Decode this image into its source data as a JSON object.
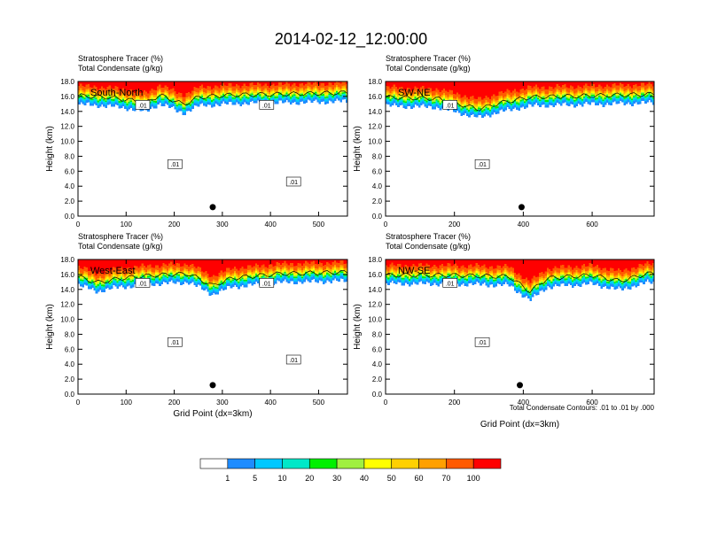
{
  "figure": {
    "title": "2014-02-12_12:00:00",
    "contour_info": "Total Condensate Contours: .01 to .01 by .000"
  },
  "colorbar": {
    "colors": [
      "#ffffff",
      "#1e8cff",
      "#00c8ff",
      "#00e8c8",
      "#00f000",
      "#a0f040",
      "#ffff00",
      "#ffd000",
      "#ffa000",
      "#ff5a00",
      "#ff0000"
    ],
    "tick_labels": [
      "1",
      "5",
      "10",
      "20",
      "30",
      "40",
      "50",
      "60",
      "70",
      "100"
    ]
  },
  "chart_data": [
    {
      "type": "heatmap",
      "label": "South-North",
      "subtitle_1": "Stratosphere Tracer   (%)",
      "subtitle_2": "Total Condensate   (g/kg)",
      "ylabel": "Height (km)",
      "xlabel": "",
      "xlim": [
        0,
        560
      ],
      "ylim": [
        0,
        18
      ],
      "xticks": [
        0,
        100,
        200,
        300,
        400,
        500
      ],
      "yticks": [
        "0.0",
        "2.0",
        "4.0",
        "6.0",
        "8.0",
        "10.0",
        "12.0",
        "14.0",
        "16.0",
        "18.0"
      ],
      "tropopause_km": [
        [
          0,
          15.2
        ],
        [
          60,
          15.0
        ],
        [
          110,
          14.6
        ],
        [
          140,
          14.2
        ],
        [
          170,
          15.3
        ],
        [
          220,
          14.0
        ],
        [
          250,
          15.0
        ],
        [
          320,
          15.3
        ],
        [
          420,
          15.4
        ],
        [
          560,
          15.6
        ]
      ],
      "contour_labels": [
        ".01",
        ".01",
        ".01",
        ".01"
      ],
      "marker": {
        "x": 280,
        "y": 1.2
      }
    },
    {
      "type": "heatmap",
      "label": "SW-NE",
      "subtitle_1": "Stratosphere Tracer   (%)",
      "subtitle_2": "Total Condensate   (g/kg)",
      "ylabel": "Height (km)",
      "xlabel": "",
      "xlim": [
        0,
        780
      ],
      "ylim": [
        0,
        18
      ],
      "xticks": [
        0,
        200,
        400,
        600
      ],
      "yticks": [
        "0.0",
        "2.0",
        "4.0",
        "6.0",
        "8.0",
        "10.0",
        "12.0",
        "14.0",
        "16.0",
        "18.0"
      ],
      "tropopause_km": [
        [
          0,
          15.0
        ],
        [
          150,
          14.8
        ],
        [
          220,
          14.0
        ],
        [
          270,
          13.4
        ],
        [
          330,
          14.2
        ],
        [
          420,
          15.0
        ],
        [
          600,
          15.2
        ],
        [
          780,
          15.4
        ]
      ],
      "contour_labels": [
        ".01",
        ".01"
      ],
      "marker": {
        "x": 395,
        "y": 1.2
      }
    },
    {
      "type": "heatmap",
      "label": "West-East",
      "subtitle_1": "Stratosphere Tracer   (%)",
      "subtitle_2": "Total Condensate   (g/kg)",
      "ylabel": "Height (km)",
      "xlabel": "Grid Point (dx=3km)",
      "xlim": [
        0,
        560
      ],
      "ylim": [
        0,
        18
      ],
      "xticks": [
        0,
        100,
        200,
        300,
        400,
        500
      ],
      "yticks": [
        "0.0",
        "2.0",
        "4.0",
        "6.0",
        "8.0",
        "10.0",
        "12.0",
        "14.0",
        "16.0",
        "18.0"
      ],
      "tropopause_km": [
        [
          0,
          14.8
        ],
        [
          40,
          14.0
        ],
        [
          90,
          14.6
        ],
        [
          160,
          15.0
        ],
        [
          230,
          15.2
        ],
        [
          280,
          13.6
        ],
        [
          320,
          14.6
        ],
        [
          420,
          15.2
        ],
        [
          560,
          15.4
        ]
      ],
      "contour_labels": [
        ".01",
        ".01",
        ".01",
        ".01"
      ],
      "marker": {
        "x": 280,
        "y": 1.2
      }
    },
    {
      "type": "heatmap",
      "label": "NW-SE",
      "subtitle_1": "Stratosphere Tracer   (%)",
      "subtitle_2": "Total Condensate   (g/kg)",
      "ylabel": "Height (km)",
      "xlabel": "Grid Point (dx=3km)",
      "xlim": [
        0,
        780
      ],
      "ylim": [
        0,
        18
      ],
      "xticks": [
        0,
        200,
        400,
        600
      ],
      "yticks": [
        "0.0",
        "2.0",
        "4.0",
        "6.0",
        "8.0",
        "10.0",
        "12.0",
        "14.0",
        "16.0",
        "18.0"
      ],
      "tropopause_km": [
        [
          0,
          15.0
        ],
        [
          200,
          15.0
        ],
        [
          360,
          14.8
        ],
        [
          420,
          12.8
        ],
        [
          470,
          14.6
        ],
        [
          600,
          15.0
        ],
        [
          680,
          14.2
        ],
        [
          760,
          15.2
        ],
        [
          780,
          15.2
        ]
      ],
      "contour_labels": [
        ".01",
        ".01"
      ],
      "marker": {
        "x": 390,
        "y": 1.2
      }
    }
  ]
}
